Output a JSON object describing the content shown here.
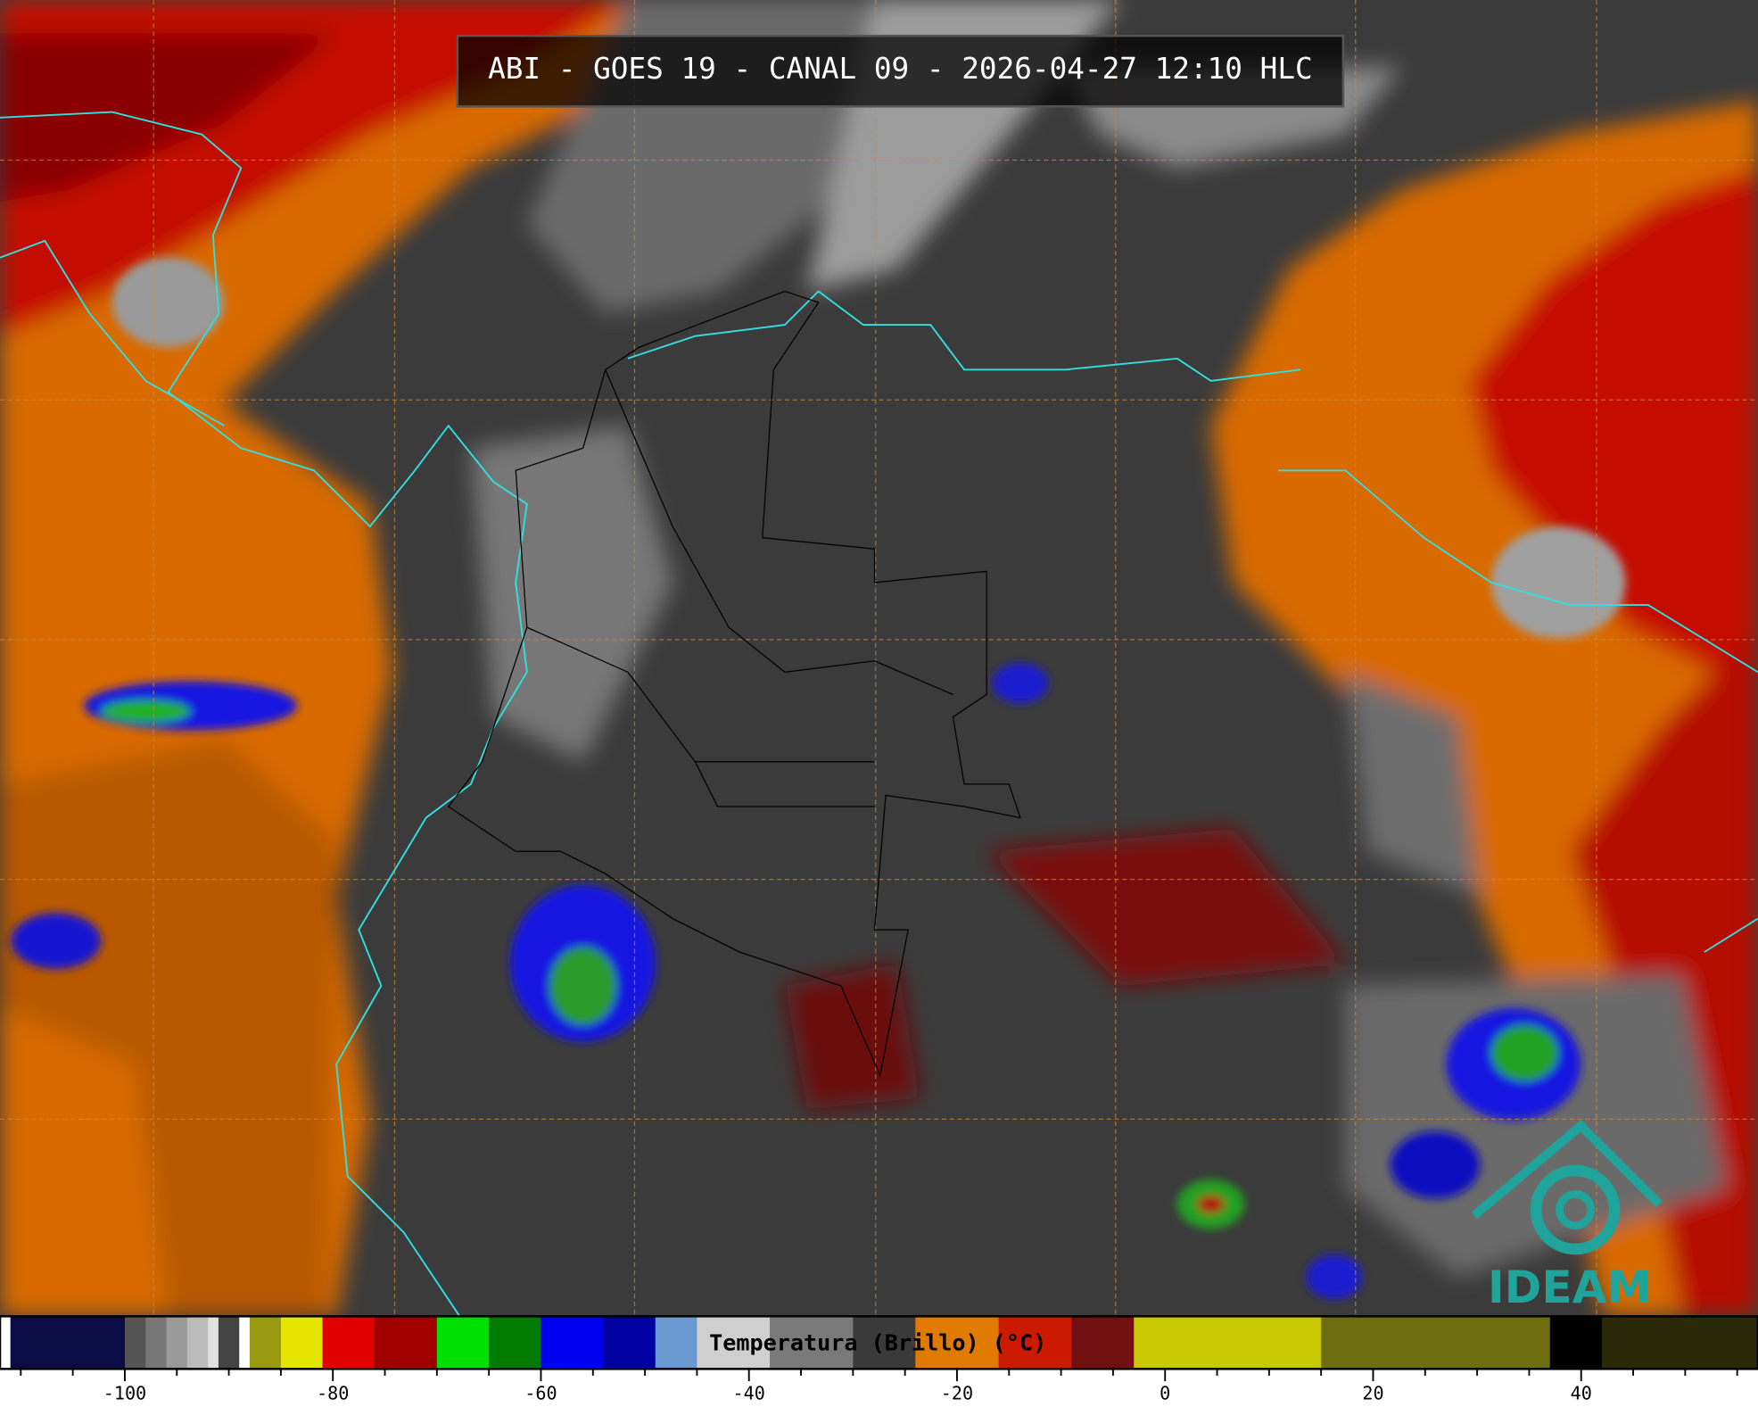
{
  "title": "ABI - GOES 19 - CANAL 09 - 2026-04-27 12:10 HLC",
  "colorbar": {
    "label": "Temperatura (Brillo) (°C)",
    "range": [
      -112,
      57
    ],
    "ticks": [
      -100,
      -80,
      -60,
      -40,
      -20,
      0,
      20,
      40
    ],
    "minor_ticks": [
      -110,
      -105,
      -95,
      -90,
      -85,
      -75,
      -70,
      -65,
      -55,
      -50,
      -45,
      -35,
      -30,
      -25,
      -15,
      -10,
      -5,
      5,
      10,
      15,
      25,
      30,
      35,
      45,
      50,
      55
    ],
    "segments": [
      {
        "from": -112,
        "to": -111,
        "color": "#ffffff"
      },
      {
        "from": -111,
        "to": -100,
        "color": "#0b0b45"
      },
      {
        "from": -100,
        "to": -98,
        "color": "#555555"
      },
      {
        "from": -98,
        "to": -96,
        "color": "#777777"
      },
      {
        "from": -96,
        "to": -94,
        "color": "#999999"
      },
      {
        "from": -94,
        "to": -92,
        "color": "#bbbbbb"
      },
      {
        "from": -92,
        "to": -91,
        "color": "#e0e0e0"
      },
      {
        "from": -91,
        "to": -89,
        "color": "#444444"
      },
      {
        "from": -89,
        "to": -88,
        "color": "#ffffff"
      },
      {
        "from": -88,
        "to": -85,
        "color": "#9a9a10"
      },
      {
        "from": -85,
        "to": -81,
        "color": "#e5e500"
      },
      {
        "from": -81,
        "to": -76,
        "color": "#e00000"
      },
      {
        "from": -76,
        "to": -70,
        "color": "#a00000"
      },
      {
        "from": -70,
        "to": -65,
        "color": "#00e000"
      },
      {
        "from": -65,
        "to": -60,
        "color": "#007a00"
      },
      {
        "from": -60,
        "to": -54,
        "color": "#0000f0"
      },
      {
        "from": -54,
        "to": -49,
        "color": "#0000a0"
      },
      {
        "from": -49,
        "to": -45,
        "color": "#6a9ad0"
      },
      {
        "from": -45,
        "to": -38,
        "color": "#cfcfcf"
      },
      {
        "from": -38,
        "to": -30,
        "color": "#7a7a7a"
      },
      {
        "from": -30,
        "to": -24,
        "color": "#3a3a3a"
      },
      {
        "from": -24,
        "to": -16,
        "color": "#e07a00"
      },
      {
        "from": -16,
        "to": -9,
        "color": "#cc1a00"
      },
      {
        "from": -9,
        "to": -3,
        "color": "#701010"
      },
      {
        "from": -3,
        "to": 15,
        "color": "#c8c800"
      },
      {
        "from": 15,
        "to": 37,
        "color": "#6e6e10"
      },
      {
        "from": 37,
        "to": 42,
        "color": "#000000"
      },
      {
        "from": 42,
        "to": 57,
        "color": "#2a2a08"
      }
    ]
  },
  "logo": "IDEAM"
}
